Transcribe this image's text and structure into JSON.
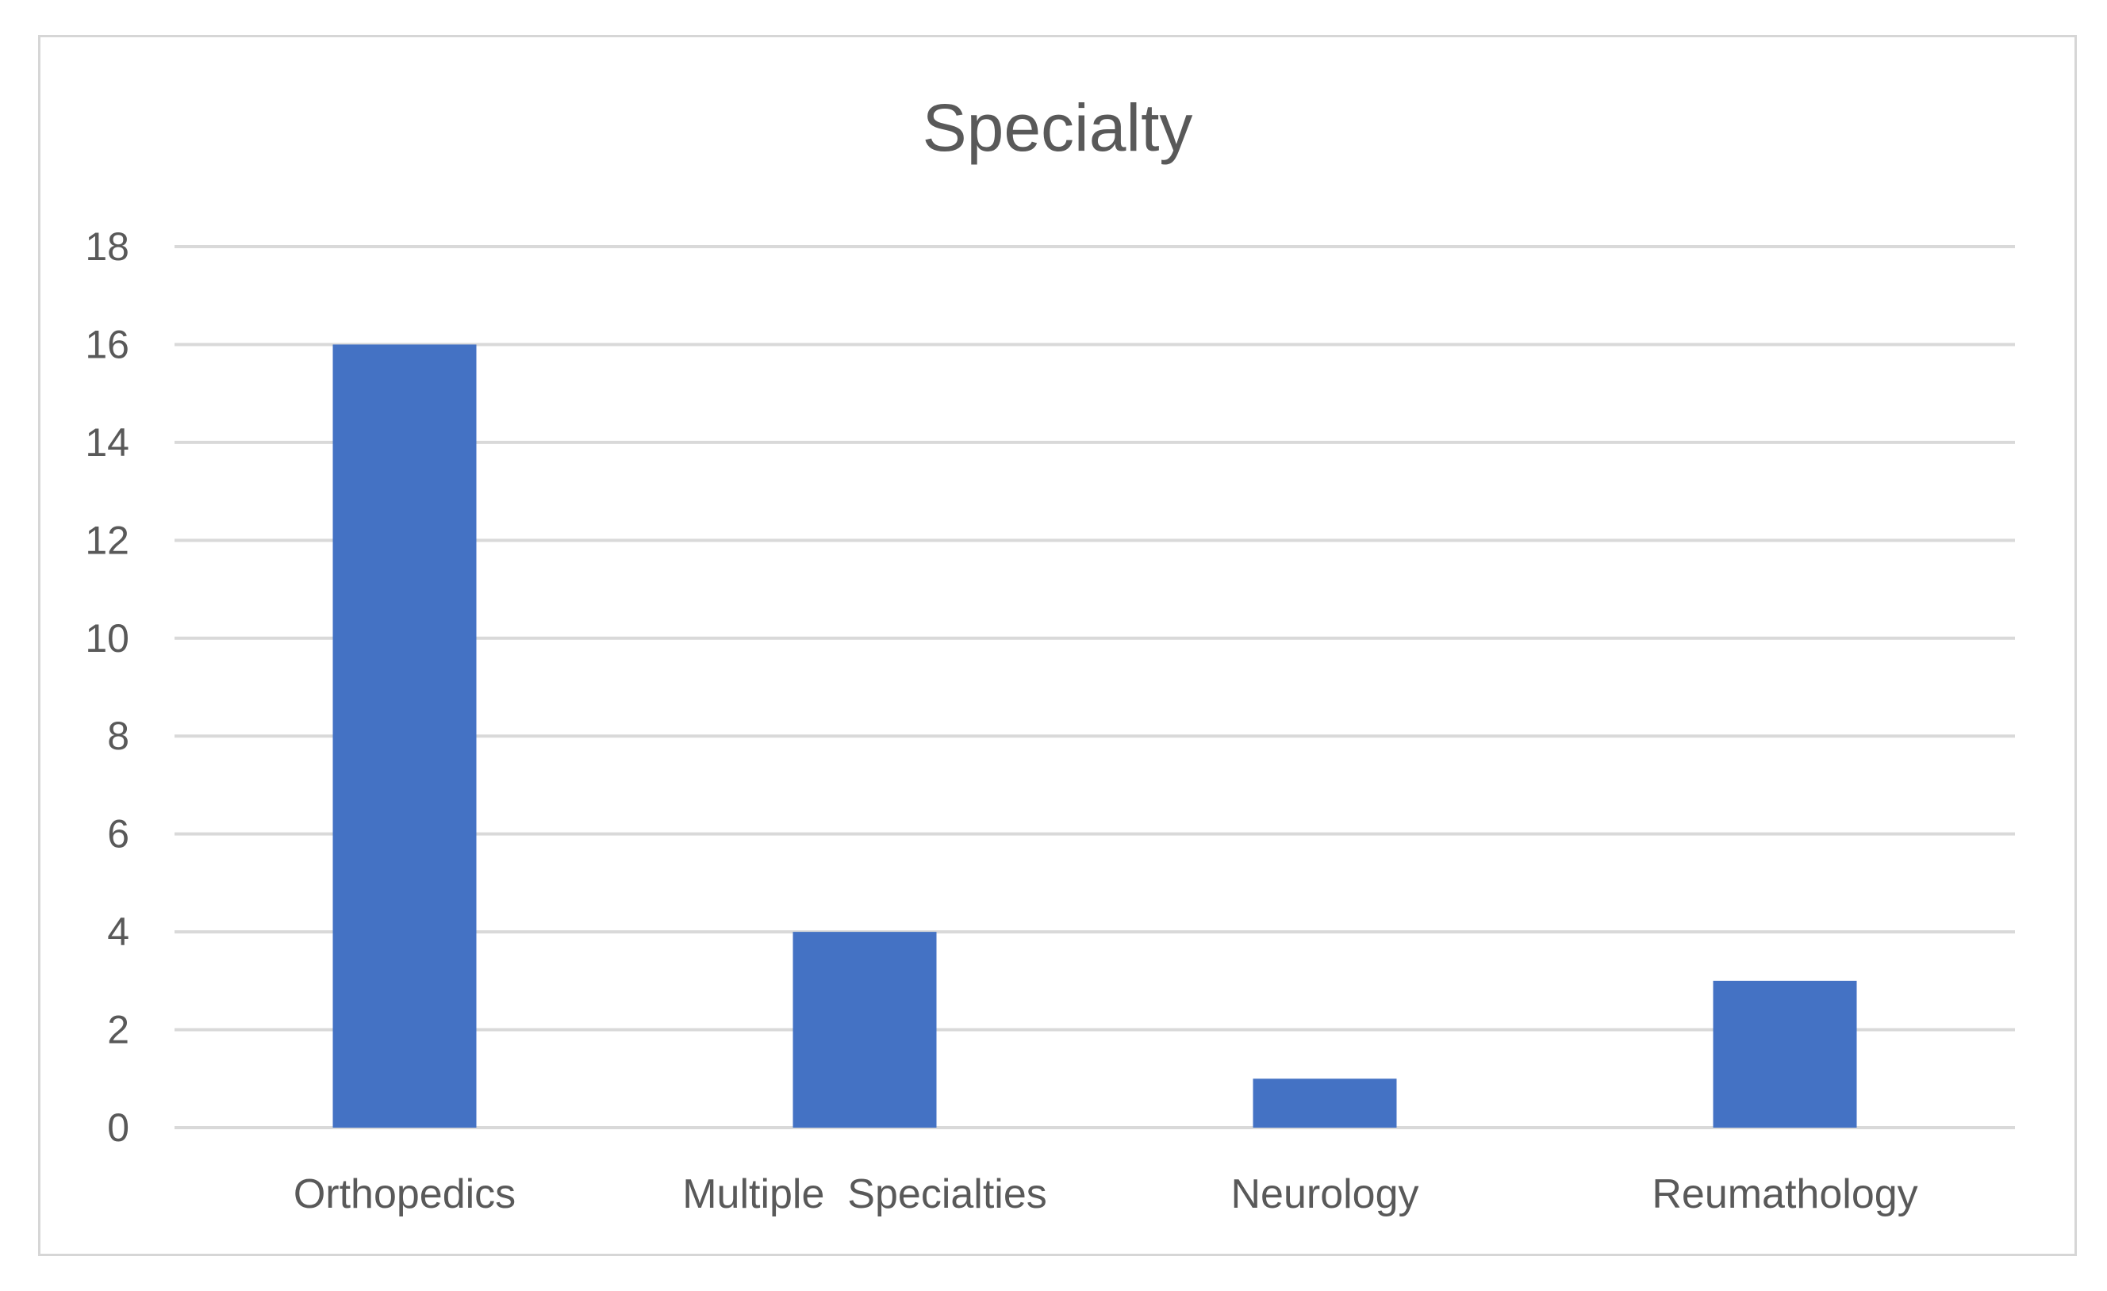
{
  "chart_data": {
    "type": "bar",
    "title": "Specialty",
    "categories": [
      "Orthopedics",
      "Multiple  Specialties",
      "Neurology",
      "Reumathology"
    ],
    "values": [
      16,
      4,
      1,
      3
    ],
    "ylim": [
      0,
      18
    ],
    "yticks": [
      "0",
      "2",
      "4",
      "6",
      "8",
      "10",
      "12",
      "14",
      "16",
      "18"
    ],
    "grid": true,
    "legend": "none",
    "bar_color": "#4472C4",
    "gridline_color": "#d9d9d9",
    "text_color": "#595959"
  }
}
